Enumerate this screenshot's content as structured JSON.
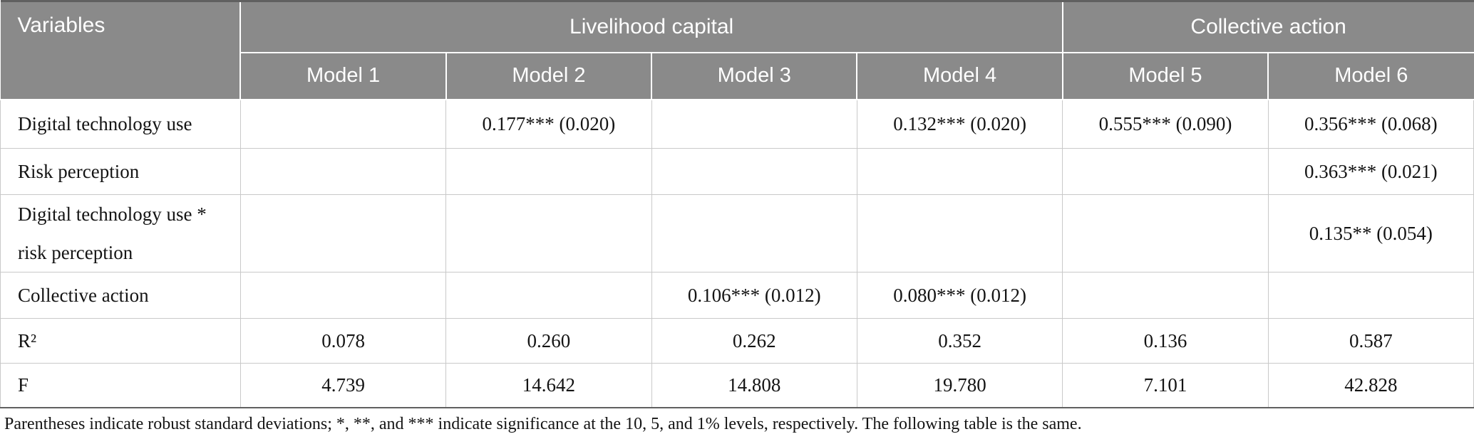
{
  "colors": {
    "header_bg": "#8a8a8a",
    "header_text": "#ffffff",
    "body_text": "#141414",
    "grid_line": "#c9c9c9",
    "dark_edge": "#606060"
  },
  "table": {
    "header": {
      "variables_label": "Variables",
      "group1": "Livelihood capital",
      "group2": "Collective action",
      "models": [
        "Model 1",
        "Model 2",
        "Model 3",
        "Model 4",
        "Model 5",
        "Model 6"
      ]
    },
    "rows": [
      {
        "label": "Digital technology use",
        "values": [
          "",
          "0.177*** (0.020)",
          "",
          "0.132*** (0.020)",
          "0.555*** (0.090)",
          "0.356*** (0.068)"
        ]
      },
      {
        "label": "Risk perception",
        "values": [
          "",
          "",
          "",
          "",
          "",
          "0.363*** (0.021)"
        ]
      },
      {
        "label": "Digital technology use * risk perception",
        "values": [
          "",
          "",
          "",
          "",
          "",
          "0.135** (0.054)"
        ]
      },
      {
        "label": "Collective action",
        "values": [
          "",
          "",
          "0.106*** (0.012)",
          "0.080*** (0.012)",
          "",
          ""
        ]
      },
      {
        "label": "R²",
        "values": [
          "0.078",
          "0.260",
          "0.262",
          "0.352",
          "0.136",
          "0.587"
        ]
      },
      {
        "label": "F",
        "values": [
          "4.739",
          "14.642",
          "14.808",
          "19.780",
          "7.101",
          "42.828"
        ]
      }
    ],
    "footnote": "Parentheses indicate robust standard deviations; *, **, and *** indicate significance at the 10, 5, and 1% levels, respectively. The following table is the same."
  }
}
